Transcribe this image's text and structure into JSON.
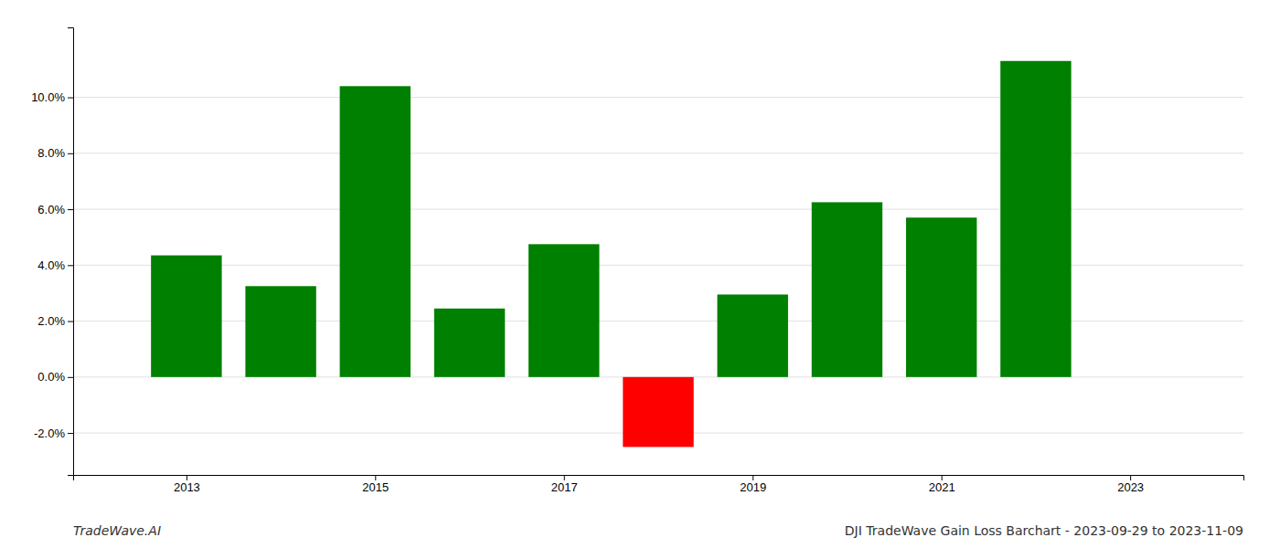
{
  "chart_data": {
    "type": "bar",
    "x": [
      2013,
      2014,
      2015,
      2016,
      2017,
      2018,
      2019,
      2020,
      2021,
      2022
    ],
    "values": [
      0.0435,
      0.0325,
      0.104,
      0.0245,
      0.0475,
      -0.025,
      0.0295,
      0.0625,
      0.057,
      0.113
    ],
    "colors": [
      "#008000",
      "#008000",
      "#008000",
      "#008000",
      "#008000",
      "#ff0000",
      "#008000",
      "#008000",
      "#008000",
      "#008000"
    ],
    "xlim": [
      2011.8,
      2024.2
    ],
    "xticks": [
      2013,
      2015,
      2017,
      2019,
      2021,
      2023
    ],
    "ylim": [
      -0.035,
      0.125
    ],
    "yticks": [
      {
        "value": -0.02,
        "label": "-2.0%"
      },
      {
        "value": 0.0,
        "label": "0.0%"
      },
      {
        "value": 0.02,
        "label": "2.0%"
      },
      {
        "value": 0.04,
        "label": "4.0%"
      },
      {
        "value": 0.06,
        "label": "6.0%"
      },
      {
        "value": 0.08,
        "label": "8.0%"
      },
      {
        "value": 0.1,
        "label": "10.0%"
      }
    ],
    "grid": true,
    "annotations": [
      "TradeWave.AI",
      "DJI TradeWave Gain Loss Barchart - 2023-09-29 to 2023-11-09"
    ]
  }
}
